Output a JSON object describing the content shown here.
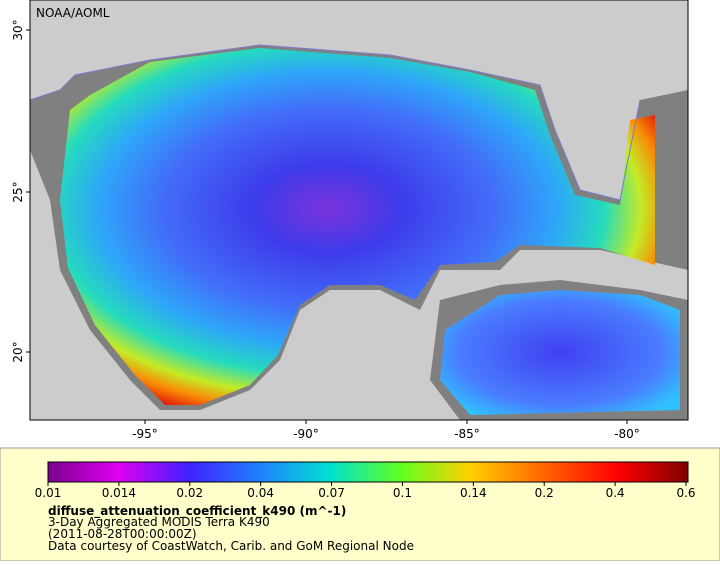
{
  "map": {
    "credit": "NOAA/AOML",
    "lat_labels": [
      "30°",
      "25°",
      "20°"
    ],
    "lon_labels": [
      "-95°",
      "-90°",
      "-85°",
      "-80°"
    ]
  },
  "legend": {
    "scale_labels": [
      "0.01",
      "0.014",
      "0.02",
      "0.04",
      "0.07",
      "0.1",
      "0.14",
      "0.2",
      "0.4",
      "0.6"
    ],
    "variable": "diffuse_attenuation_coefficient_k490 (m^-1)",
    "lines": [
      "3-Day Aggregated MODIS Terra K490",
      "(2011-08-28T00:00:00Z)",
      "Data courtesy of CoastWatch, Carib. and GoM Regional Node"
    ]
  }
}
